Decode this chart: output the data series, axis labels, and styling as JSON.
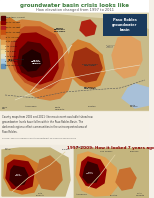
{
  "title_line1": "groundwater basin crisis looks like",
  "subtitle": "How elevation changed from 1997 to 2011",
  "section2_title": "1997-2009: How it looked 7 years ago",
  "fig_bg": "#f5f0e8",
  "map1_bg": "#cfc5a0",
  "map2_bg": "#cfc5a0",
  "legend_colors": [
    "#5a0000",
    "#8b0000",
    "#b22020",
    "#c85010",
    "#d47830",
    "#e0a050",
    "#ecc880",
    "#f0dca0",
    "#e0e0c8",
    "#a8c8dc",
    "#6090b8"
  ],
  "legend_labels": [
    "More than -40 feet",
    "-30 to -40 feet",
    "-20 to -30 feet",
    "-10 to -20 feet",
    "-5 to -10 feet",
    "-2 to -5 feet",
    "0 to -2 feet",
    "0 to 2 feet",
    "2 to 5 feet",
    "5 to 10 feet",
    "More than 10 feet"
  ],
  "box_color": "#1a3a5c",
  "box_text_color": "#ffffff",
  "box_text": "Paso Robles\ngroundwater\nbasin",
  "title_color": "#3a7a3a",
  "subtitle_color": "#555555",
  "section2_color": "#8b0000",
  "body_color": "#333333",
  "note_color": "#666666"
}
